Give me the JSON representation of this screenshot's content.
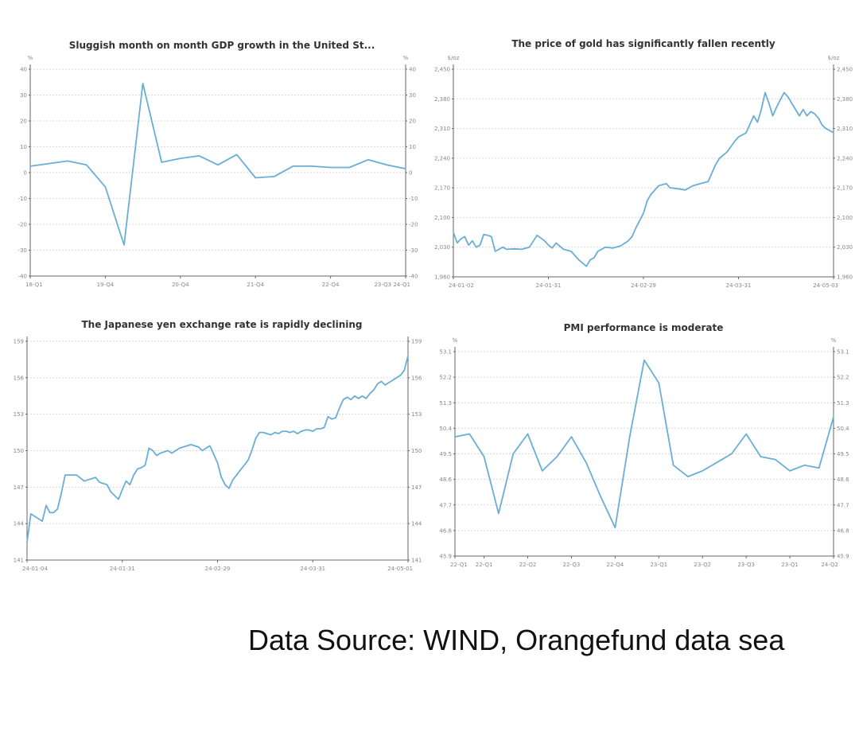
{
  "style": {
    "line_color": "#6aaed6",
    "axis_color": "#666666",
    "grid_color": "#d9d9d9",
    "text_color": "#333333"
  },
  "source": "Data Source: WIND, Orangefund data sea",
  "chart_data": [
    {
      "type": "line",
      "title": "Sluggish month on month GDP growth in the United St...",
      "unit": "%",
      "grid": true,
      "ylim": [
        -40,
        40
      ],
      "y2lim": [
        -40,
        40
      ],
      "yticks": [
        -40,
        -30,
        -20,
        -10,
        0,
        10,
        20,
        30,
        40
      ],
      "y2ticks": [
        -40,
        -30,
        -20,
        -10,
        0,
        10,
        20,
        30,
        40
      ],
      "xlim": [
        0,
        20
      ],
      "xticks": [
        {
          "x": 0,
          "label": "18-Q1"
        },
        {
          "x": 4,
          "label": "19-Q4"
        },
        {
          "x": 8,
          "label": "20-Q4"
        },
        {
          "x": 12,
          "label": "21-Q4"
        },
        {
          "x": 16,
          "label": "22-Q4"
        },
        {
          "x": 20,
          "label": "23-Q3 24-Q1"
        }
      ],
      "series": [
        {
          "x": [
            0,
            1,
            2,
            3,
            4,
            5,
            6,
            7,
            8,
            9,
            10,
            11,
            12,
            13,
            14,
            15,
            16,
            17,
            18,
            19,
            20
          ],
          "values": [
            2.5,
            3.5,
            4.5,
            3,
            -5.5,
            -28,
            34.5,
            4,
            5.5,
            6.5,
            3,
            7,
            -2,
            -1.5,
            2.5,
            2.5,
            2,
            2,
            5,
            3,
            1.5
          ]
        }
      ]
    },
    {
      "type": "line",
      "title": "The price of gold has significantly fallen recently",
      "unit": "$/oz",
      "grid": true,
      "ylim": [
        1960,
        2450
      ],
      "y2lim": [
        1960,
        2450
      ],
      "yticks": [
        1960,
        2030,
        2100,
        2170,
        2240,
        2310,
        2380,
        2450
      ],
      "y2ticks": [
        1960,
        2030,
        2100,
        2170,
        2240,
        2310,
        2380,
        2450
      ],
      "xlim": [
        0,
        100
      ],
      "xticks": [
        {
          "x": 0,
          "label": "24-01-02"
        },
        {
          "x": 25,
          "label": "24-01-31"
        },
        {
          "x": 50,
          "label": "24-02-29"
        },
        {
          "x": 75,
          "label": "24-03-31"
        },
        {
          "x": 100,
          "label": "24-05-03"
        }
      ],
      "series": [
        {
          "x": [
            0,
            1,
            2,
            3,
            4,
            5,
            6,
            7,
            8,
            9,
            10,
            11,
            12,
            13,
            14,
            16,
            18,
            20,
            22,
            24,
            25,
            26,
            27,
            29,
            31,
            33,
            35,
            36,
            37,
            38,
            40,
            42,
            44,
            46,
            47,
            48,
            50,
            51,
            52,
            54,
            56,
            57,
            59,
            61,
            63,
            65,
            67,
            69,
            70,
            72,
            74,
            75,
            77,
            79,
            80,
            81,
            82,
            83,
            84,
            85,
            86,
            87,
            88,
            89,
            90,
            91,
            92,
            93,
            94,
            95,
            96,
            97,
            98,
            99,
            100
          ],
          "values": [
            2065,
            2040,
            2050,
            2055,
            2035,
            2045,
            2030,
            2035,
            2060,
            2058,
            2055,
            2020,
            2025,
            2030,
            2025,
            2026,
            2025,
            2030,
            2058,
            2045,
            2035,
            2028,
            2040,
            2025,
            2020,
            2000,
            1985,
            2000,
            2005,
            2020,
            2030,
            2028,
            2033,
            2045,
            2055,
            2075,
            2110,
            2140,
            2155,
            2175,
            2180,
            2170,
            2168,
            2165,
            2175,
            2180,
            2185,
            2225,
            2240,
            2255,
            2280,
            2290,
            2300,
            2340,
            2325,
            2355,
            2395,
            2370,
            2340,
            2360,
            2378,
            2395,
            2385,
            2370,
            2355,
            2340,
            2355,
            2340,
            2350,
            2345,
            2335,
            2318,
            2310,
            2305,
            2300
          ]
        }
      ]
    },
    {
      "type": "line",
      "title": "The Japanese yen exchange rate is rapidly declining",
      "unit": "",
      "grid": true,
      "ylim": [
        141,
        159
      ],
      "y2lim": [
        141,
        159
      ],
      "yticks": [
        141,
        144,
        147,
        150,
        153,
        156,
        159
      ],
      "y2ticks": [
        141,
        144,
        147,
        150,
        153,
        156,
        159
      ],
      "xlim": [
        0,
        100
      ],
      "xticks": [
        {
          "x": 0,
          "label": "24-01-04"
        },
        {
          "x": 25,
          "label": "24-01-31"
        },
        {
          "x": 50,
          "label": "24-02-29"
        },
        {
          "x": 75,
          "label": "24-03-31"
        },
        {
          "x": 100,
          "label": "24-05-01"
        }
      ],
      "series": [
        {
          "x": [
            0,
            1,
            2,
            4,
            5,
            6,
            7,
            8,
            9,
            10,
            12,
            13,
            15,
            18,
            19,
            21,
            22,
            23,
            24,
            25,
            26,
            27,
            28,
            29,
            30,
            31,
            32,
            33,
            34,
            35,
            36,
            37,
            38,
            40,
            41,
            42,
            43,
            44,
            45,
            46,
            47,
            48,
            50,
            51,
            52,
            53,
            54,
            55,
            56,
            57,
            58,
            59,
            60,
            61,
            62,
            63,
            64,
            65,
            66,
            67,
            68,
            69,
            70,
            71,
            72,
            73,
            74,
            75,
            76,
            77,
            78,
            79,
            80,
            81,
            82,
            83,
            84,
            85,
            86,
            87,
            88,
            89,
            90,
            91,
            92,
            93,
            94,
            95,
            96,
            97,
            98,
            99,
            100
          ],
          "values": [
            142.5,
            144.8,
            144.6,
            144.2,
            145.5,
            144.9,
            144.9,
            145.2,
            146.5,
            148.0,
            148.0,
            148.0,
            147.5,
            147.8,
            147.4,
            147.2,
            146.6,
            146.3,
            146.0,
            146.8,
            147.5,
            147.2,
            148.0,
            148.5,
            148.6,
            148.8,
            150.2,
            150.0,
            149.6,
            149.8,
            149.9,
            150.0,
            149.8,
            150.2,
            150.3,
            150.4,
            150.5,
            150.4,
            150.3,
            150.0,
            150.2,
            150.4,
            149.0,
            147.8,
            147.2,
            146.9,
            147.6,
            148.0,
            148.4,
            148.8,
            149.2,
            150.0,
            151.0,
            151.5,
            151.5,
            151.4,
            151.3,
            151.5,
            151.4,
            151.6,
            151.6,
            151.5,
            151.6,
            151.4,
            151.6,
            151.7,
            151.7,
            151.6,
            151.8,
            151.8,
            151.9,
            152.8,
            152.6,
            152.7,
            153.5,
            154.2,
            154.4,
            154.2,
            154.5,
            154.3,
            154.5,
            154.3,
            154.7,
            155.0,
            155.5,
            155.7,
            155.4,
            155.6,
            155.8,
            156.0,
            156.2,
            156.6,
            157.8
          ]
        }
      ]
    },
    {
      "type": "line",
      "title": "PMI performance is moderate",
      "unit": "%",
      "grid": true,
      "ylim": [
        45.9,
        53.1
      ],
      "y2lim": [
        45.9,
        53.1
      ],
      "yticks": [
        45.9,
        46.8,
        47.7,
        48.6,
        49.5,
        50.4,
        51.3,
        52.2,
        53.1
      ],
      "y2ticks": [
        45.9,
        46.8,
        47.7,
        48.6,
        49.5,
        50.4,
        51.3,
        52.2,
        53.1
      ],
      "xlim": [
        0,
        26
      ],
      "xticks": [
        {
          "x": 0,
          "label": "22-Q1"
        },
        {
          "x": 2,
          "label": "22-Q1"
        },
        {
          "x": 5,
          "label": "22-Q2"
        },
        {
          "x": 8,
          "label": "22-Q3"
        },
        {
          "x": 11,
          "label": "22-Q4"
        },
        {
          "x": 14,
          "label": "23-Q1"
        },
        {
          "x": 17,
          "label": "23-Q2"
        },
        {
          "x": 20,
          "label": "23-Q3"
        },
        {
          "x": 23,
          "label": "23-Q1"
        },
        {
          "x": 26,
          "label": "24-Q2"
        }
      ],
      "series": [
        {
          "x": [
            0,
            1,
            2,
            3,
            4,
            5,
            6,
            7,
            8,
            9,
            10,
            11,
            12,
            13,
            14,
            15,
            16,
            17,
            18,
            19,
            20,
            21,
            22,
            23,
            24,
            25,
            26
          ],
          "values": [
            50.1,
            50.2,
            49.4,
            47.4,
            49.5,
            50.2,
            48.9,
            49.4,
            50.1,
            49.2,
            48.0,
            46.9,
            50.1,
            52.8,
            52.0,
            49.1,
            48.7,
            48.9,
            49.2,
            49.5,
            50.2,
            49.4,
            49.3,
            48.9,
            49.1,
            49.0,
            50.8
          ]
        }
      ]
    }
  ]
}
